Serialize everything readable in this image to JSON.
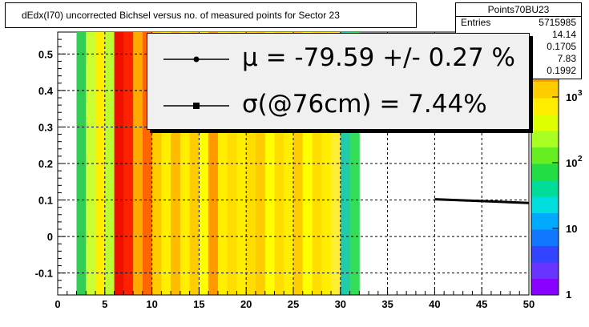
{
  "title": "dEdx(I70) uncorrected Bichsel versus no. of measured points for Sector 23",
  "stats": {
    "name": "Points70BU23",
    "rows": [
      {
        "label": "Entries",
        "value": "5715985"
      },
      {
        "label": "",
        "value": "14.14"
      },
      {
        "label": "",
        "value": "0.1705"
      },
      {
        "label": "",
        "value": "7.83"
      },
      {
        "label": "",
        "value": "0.1992"
      }
    ]
  },
  "legend": {
    "entries": [
      {
        "symbol": "dot",
        "text": "μ  = -79.59 +/-  0.27 %"
      },
      {
        "symbol": "square",
        "text": "σ(@76cm) =  7.44%"
      }
    ]
  },
  "chart_data": {
    "type": "heatmap",
    "title": "dEdx(I70) uncorrected Bichsel versus no. of measured points for Sector 23",
    "x_ticks": [
      "0",
      "5",
      "10",
      "15",
      "20",
      "25",
      "30",
      "35",
      "40",
      "45",
      "50"
    ],
    "y_ticks": [
      "-0.1",
      "0",
      "0.1",
      "0.2",
      "0.3",
      "0.4",
      "0.5"
    ],
    "xlim": [
      0,
      50
    ],
    "ylim": [
      -0.16,
      0.56
    ],
    "grid": true,
    "colorbar": {
      "scale": "log",
      "ticks": [
        "1",
        "10",
        "10",
        "10"
      ],
      "exponents": [
        "",
        "",
        "2",
        "3"
      ]
    },
    "columns_x": [
      2,
      3,
      4,
      5,
      6,
      7,
      8,
      9,
      10,
      11,
      12,
      13,
      14,
      15,
      16,
      17,
      18,
      19,
      20,
      21,
      22,
      23,
      24,
      25,
      26,
      27,
      28,
      29,
      30,
      31
    ],
    "column_colors": [
      "#33cc55",
      "#ccff33",
      "#ffee00",
      "#bbff33",
      "#ee1100",
      "#ff2200",
      "#ffaa00",
      "#ff6600",
      "#ffcc00",
      "#ffee00",
      "#ffbb00",
      "#ffee00",
      "#ffcc00",
      "#ffff00",
      "#ff9900",
      "#ffee00",
      "#ffdd00",
      "#ffee00",
      "#ffdd00",
      "#ffcc00",
      "#ffff00",
      "#ffdd00",
      "#ffee00",
      "#ffcc00",
      "#ffff00",
      "#ffdd00",
      "#ffee00",
      "#ffee33",
      "#22ccaa",
      "#33dd55"
    ],
    "fit_series": {
      "name": "",
      "x": [
        40,
        45,
        50
      ],
      "y": [
        0.102,
        0.097,
        0.092
      ]
    }
  }
}
